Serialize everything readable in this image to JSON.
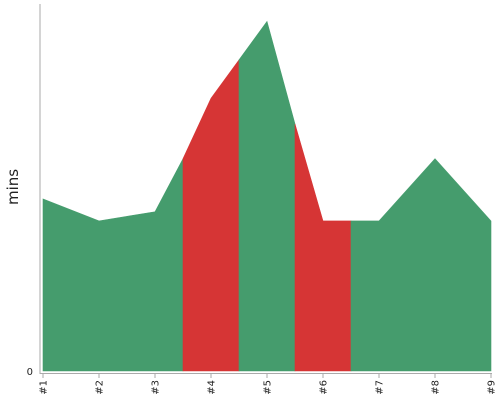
{
  "chart_data": {
    "type": "area",
    "title": "",
    "xlabel": "",
    "ylabel": "mins",
    "categories": [
      "#1",
      "#2",
      "#3",
      "#4",
      "#5",
      "#6",
      "#7",
      "#8",
      "#9"
    ],
    "y_tick_labels": [
      "0"
    ],
    "ylim": [
      0,
      100
    ],
    "grid": false,
    "legend": "none",
    "colors": {
      "normal": "#459c6d",
      "highlight": "#d63535",
      "axis": "#aaaaaa"
    },
    "points": [
      {
        "x": 1,
        "y": 47
      },
      {
        "x": 2,
        "y": 41
      },
      {
        "x": 3,
        "y": 43.5
      },
      {
        "x": 3.5,
        "y": 58
      },
      {
        "x": 4,
        "y": 74.5
      },
      {
        "x": 4.5,
        "y": 85
      },
      {
        "x": 5,
        "y": 95.5
      },
      {
        "x": 5.5,
        "y": 67.5
      },
      {
        "x": 6,
        "y": 41
      },
      {
        "x": 6.5,
        "y": 41
      },
      {
        "x": 7,
        "y": 41
      },
      {
        "x": 8,
        "y": 58
      },
      {
        "x": 9,
        "y": 41
      }
    ],
    "segments": [
      {
        "from": 1,
        "to": 3.5,
        "status": "normal"
      },
      {
        "from": 3.5,
        "to": 4.5,
        "status": "highlight"
      },
      {
        "from": 4.5,
        "to": 5.5,
        "status": "normal"
      },
      {
        "from": 5.5,
        "to": 6.5,
        "status": "highlight"
      },
      {
        "from": 6.5,
        "to": 9,
        "status": "normal"
      }
    ]
  }
}
